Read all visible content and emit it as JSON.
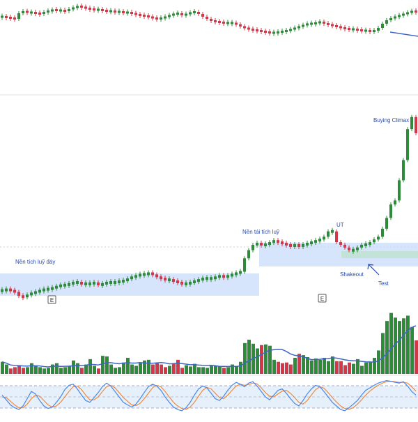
{
  "colors": {
    "up": "#2e8b3a",
    "down": "#d2384a",
    "zone_fill": "#c9dcfb",
    "resistance_fill": "#bfe3d2",
    "vol_ma": "#3c67c9",
    "stoch_k": "#4a86e8",
    "stoch_d": "#f08a3c",
    "stoch_band": "#e6f0fb",
    "label_text": "#2a4aa8",
    "separator": "#dddddd"
  },
  "annotations": {
    "base_bottom": "Nền tích luỹ đáy",
    "reaccum": "Nền tái tích luỹ",
    "ut": "UT",
    "shakeout": "Shakeout",
    "test": "Test",
    "buying_climax": "Buying Climax",
    "earnings_marker": "E"
  },
  "chart_data": [
    {
      "type": "line",
      "panel": "comparison index (top pane)",
      "x": [
        1,
        7,
        13,
        19,
        25,
        31,
        37,
        43,
        49,
        55,
        61,
        67,
        73,
        79,
        85,
        91,
        97,
        103,
        109,
        115,
        121,
        127,
        133,
        139,
        145,
        151,
        157,
        163,
        169,
        175,
        181,
        187,
        193,
        199,
        205,
        211,
        217,
        223,
        229,
        235,
        241,
        247,
        253,
        259,
        265,
        271,
        277,
        283,
        289,
        295,
        301,
        307,
        313,
        319,
        325,
        331,
        337,
        343,
        349,
        355,
        361,
        367,
        373,
        379,
        385,
        391,
        397,
        403,
        409,
        415,
        421,
        427,
        433,
        439,
        445,
        451,
        457,
        463,
        469,
        475,
        481,
        487,
        493,
        499,
        505,
        511,
        517,
        523,
        529,
        535,
        541,
        547,
        553,
        559,
        565,
        571,
        577,
        583,
        589,
        595
      ],
      "values": [
        38,
        37,
        36,
        35,
        43,
        46,
        44,
        44,
        43,
        42,
        45,
        46,
        48,
        47,
        47,
        46,
        49,
        51,
        53,
        52,
        50,
        49,
        48,
        48,
        47,
        46,
        46,
        45,
        45,
        44,
        44,
        43,
        41,
        40,
        39,
        38,
        36,
        35,
        36,
        38,
        40,
        42,
        43,
        40,
        42,
        44,
        45,
        42,
        38,
        35,
        32,
        31,
        30,
        29,
        29,
        29,
        27,
        24,
        22,
        20,
        19,
        18,
        17,
        16,
        15,
        15,
        16,
        17,
        18,
        20,
        22,
        24,
        26,
        28,
        28,
        29,
        31,
        28,
        27,
        25,
        24,
        22,
        21,
        20,
        20,
        19,
        18,
        18,
        17,
        18,
        22,
        28,
        33,
        36,
        38,
        40,
        42,
        44,
        46,
        45
      ],
      "title": "",
      "xlabel": "",
      "ylabel": ""
    },
    {
      "type": "line",
      "panel": "price (main pane)",
      "x": [
        1,
        7,
        13,
        19,
        25,
        31,
        37,
        43,
        49,
        55,
        61,
        67,
        73,
        79,
        85,
        91,
        97,
        103,
        109,
        115,
        121,
        127,
        133,
        139,
        145,
        151,
        157,
        163,
        169,
        175,
        181,
        187,
        193,
        199,
        205,
        211,
        217,
        223,
        229,
        235,
        241,
        247,
        253,
        259,
        265,
        271,
        277,
        283,
        289,
        295,
        301,
        307,
        313,
        319,
        325,
        331,
        337,
        343,
        349,
        355,
        361,
        367,
        373,
        379,
        385,
        391,
        397,
        403,
        409,
        415,
        421,
        427,
        433,
        439,
        445,
        451,
        457,
        463,
        469,
        475,
        481,
        487,
        493,
        499,
        505,
        511,
        517,
        523,
        529,
        535,
        541,
        547,
        553,
        559,
        565,
        571,
        577,
        583,
        589,
        595
      ],
      "values": [
        8,
        9,
        8,
        7,
        4,
        3,
        5,
        6,
        7,
        8,
        9,
        9,
        10,
        11,
        12,
        12,
        13,
        14,
        14,
        13,
        13,
        13,
        14,
        12,
        13,
        14,
        14,
        14,
        15,
        15,
        17,
        18,
        19,
        20,
        20,
        21,
        20,
        18,
        17,
        16,
        16,
        15,
        14,
        13,
        13,
        14,
        15,
        16,
        17,
        17,
        17,
        18,
        19,
        18,
        19,
        20,
        21,
        22,
        32,
        38,
        42,
        43,
        42,
        42,
        44,
        45,
        44,
        43,
        42,
        41,
        42,
        41,
        42,
        43,
        44,
        45,
        46,
        48,
        52,
        52,
        44,
        42,
        40,
        38,
        38,
        40,
        42,
        42,
        44,
        46,
        48,
        54,
        62,
        72,
        75,
        90,
        105,
        128,
        137,
        125
      ],
      "title": "",
      "xlabel": "",
      "ylabel": ""
    },
    {
      "type": "bar",
      "panel": "volume",
      "x": [
        1,
        7,
        13,
        19,
        25,
        31,
        37,
        43,
        49,
        55,
        61,
        67,
        73,
        79,
        85,
        91,
        97,
        103,
        109,
        115,
        121,
        127,
        133,
        139,
        145,
        151,
        157,
        163,
        169,
        175,
        181,
        187,
        193,
        199,
        205,
        211,
        217,
        223,
        229,
        235,
        241,
        247,
        253,
        259,
        265,
        271,
        277,
        283,
        289,
        295,
        301,
        307,
        313,
        319,
        325,
        331,
        337,
        343,
        349,
        355,
        361,
        367,
        373,
        379,
        385,
        391,
        397,
        403,
        409,
        415,
        421,
        427,
        433,
        439,
        445,
        451,
        457,
        463,
        469,
        475,
        481,
        487,
        493,
        499,
        505,
        511,
        517,
        523,
        529,
        535,
        541,
        547,
        553,
        559,
        565,
        571,
        577,
        583,
        589,
        595
      ],
      "values": [
        18,
        14,
        8,
        10,
        12,
        9,
        10,
        16,
        12,
        10,
        8,
        9,
        14,
        16,
        9,
        10,
        12,
        20,
        16,
        9,
        14,
        22,
        12,
        8,
        27,
        26,
        14,
        9,
        10,
        17,
        24,
        14,
        12,
        17,
        20,
        21,
        14,
        16,
        14,
        10,
        12,
        16,
        21,
        9,
        13,
        11,
        15,
        10,
        10,
        9,
        13,
        12,
        11,
        9,
        10,
        14,
        12,
        18,
        46,
        51,
        45,
        38,
        43,
        44,
        42,
        21,
        18,
        16,
        17,
        14,
        24,
        30,
        28,
        25,
        20,
        23,
        21,
        24,
        19,
        26,
        19,
        19,
        13,
        17,
        15,
        22,
        12,
        17,
        18,
        24,
        35,
        61,
        79,
        91,
        84,
        79,
        83,
        87,
        70,
        50
      ],
      "title": "",
      "xlabel": "",
      "ylabel": ""
    },
    {
      "type": "line",
      "panel": "stochastic oscillator",
      "ylim": [
        0,
        100
      ],
      "x": [
        1,
        7,
        13,
        19,
        25,
        31,
        37,
        43,
        49,
        55,
        61,
        67,
        73,
        79,
        85,
        91,
        97,
        103,
        109,
        115,
        121,
        127,
        133,
        139,
        145,
        151,
        157,
        163,
        169,
        175,
        181,
        187,
        193,
        199,
        205,
        211,
        217,
        223,
        229,
        235,
        241,
        247,
        253,
        259,
        265,
        271,
        277,
        283,
        289,
        295,
        301,
        307,
        313,
        319,
        325,
        331,
        337,
        343,
        349,
        355,
        361,
        367,
        373,
        379,
        385,
        391,
        397,
        403,
        409,
        415,
        421,
        427,
        433,
        439,
        445,
        451,
        457,
        463,
        469,
        475,
        481,
        487,
        493,
        499,
        505,
        511,
        517,
        523,
        529,
        535,
        541,
        547,
        553,
        559,
        565,
        571,
        577,
        583,
        589,
        595
      ],
      "series": [
        {
          "values": [
            55,
            42,
            28,
            20,
            15,
            25,
            45,
            65,
            58,
            40,
            25,
            18,
            22,
            35,
            50,
            70,
            82,
            85,
            72,
            55,
            40,
            35,
            48,
            62,
            78,
            88,
            80,
            65,
            50,
            35,
            28,
            22,
            30,
            45,
            62,
            78,
            85,
            80,
            68,
            50,
            35,
            22,
            15,
            12,
            20,
            35,
            55,
            72,
            80,
            75,
            60,
            45,
            40,
            52,
            68,
            82,
            90,
            85,
            78,
            88,
            92,
            80,
            65,
            50,
            42,
            55,
            68,
            72,
            60,
            45,
            32,
            25,
            40,
            58,
            72,
            82,
            78,
            65,
            50,
            35,
            25,
            15,
            12,
            20,
            30,
            40,
            55,
            68,
            75,
            82,
            88,
            92,
            95,
            93,
            90,
            88,
            92,
            80,
            65,
            55
          ]
        },
        {
          "values": [
            50,
            48,
            38,
            28,
            20,
            20,
            30,
            45,
            55,
            52,
            40,
            28,
            22,
            25,
            35,
            50,
            65,
            78,
            80,
            70,
            55,
            42,
            42,
            50,
            65,
            78,
            82,
            75,
            62,
            48,
            38,
            28,
            26,
            32,
            45,
            60,
            75,
            82,
            78,
            65,
            50,
            35,
            25,
            18,
            16,
            22,
            35,
            52,
            68,
            76,
            72,
            60,
            48,
            45,
            55,
            68,
            80,
            85,
            82,
            84,
            88,
            86,
            75,
            62,
            52,
            50,
            58,
            66,
            68,
            60,
            48,
            35,
            30,
            40,
            55,
            70,
            78,
            74,
            62,
            48,
            36,
            25,
            18,
            16,
            20,
            30,
            42,
            55,
            66,
            75,
            82,
            88,
            92,
            93,
            92,
            90,
            90,
            88,
            78,
            66
          ]
        }
      ],
      "title": "",
      "xlabel": "",
      "ylabel": ""
    }
  ]
}
